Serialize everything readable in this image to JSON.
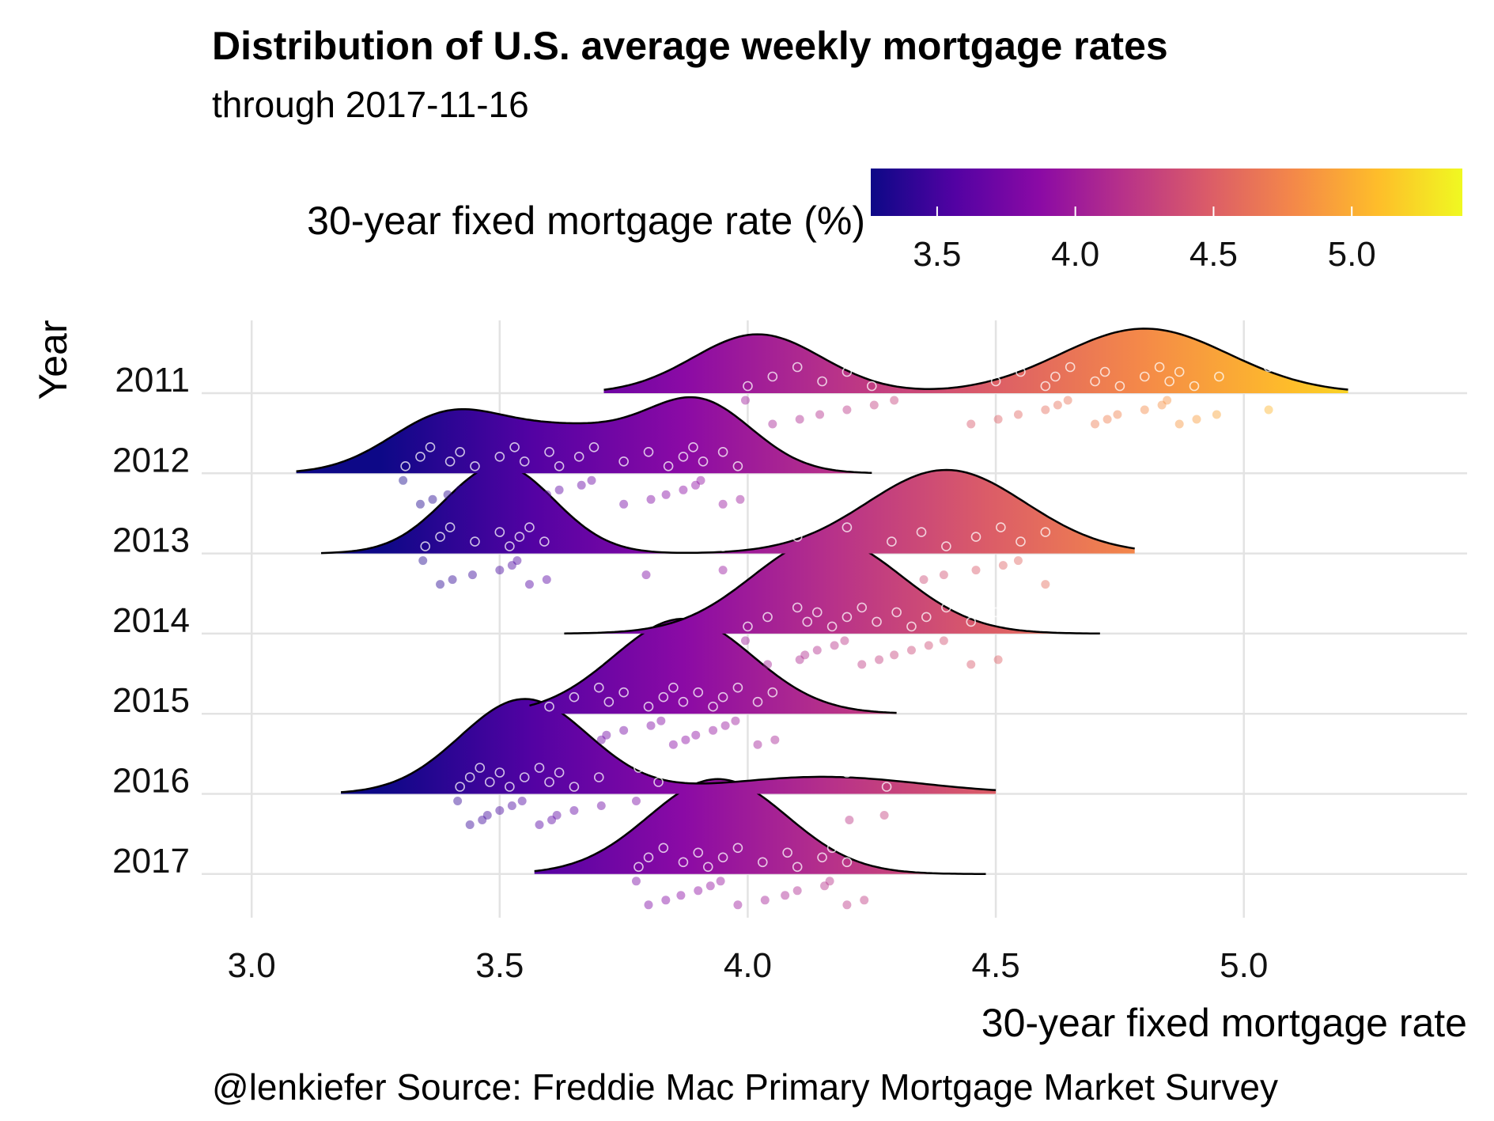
{
  "chart_data": {
    "type": "ridgeline",
    "title": "Distribution of U.S. average weekly mortgage rates",
    "subtitle": "through  2017-11-16",
    "xlabel": "30-year fixed mortgage rate",
    "ylabel": "Year",
    "caption": "@lenkiefer Source: Freddie Mac Primary Mortgage Market Survey",
    "xlim": [
      2.92,
      5.45
    ],
    "x_ticks": [
      "3.0",
      "3.5",
      "4.0",
      "4.5",
      "5.0"
    ],
    "x_tick_values": [
      3.0,
      3.5,
      4.0,
      4.5,
      5.0
    ],
    "legend": {
      "title": "30-year fixed mortgage rate (%)",
      "placement": "top-right",
      "range": [
        3.26,
        5.4
      ],
      "ticks": [
        "3.5",
        "4.0",
        "4.5",
        "5.0"
      ],
      "tick_values": [
        3.5,
        4.0,
        4.5,
        5.0
      ],
      "colormap": "plasma",
      "colors": [
        "#0d0887",
        "#5302a3",
        "#8b0aa5",
        "#b83289",
        "#db5c68",
        "#f48849",
        "#febd2a",
        "#f0f921"
      ]
    },
    "grid": true,
    "series": [
      {
        "name": "2011",
        "range": [
          3.71,
          5.21
        ],
        "peaks": [
          {
            "center": 4.02,
            "sd": 0.13,
            "weight": 0.62
          },
          {
            "center": 4.8,
            "sd": 0.17,
            "weight": 0.68
          }
        ],
        "points": [
          4.0,
          4.05,
          4.1,
          4.15,
          4.2,
          4.25,
          4.3,
          4.45,
          4.5,
          4.55,
          4.6,
          4.62,
          4.65,
          4.7,
          4.72,
          4.75,
          4.8,
          4.83,
          4.85,
          4.87,
          4.9,
          4.95,
          5.05
        ]
      },
      {
        "name": "2012",
        "range": [
          3.09,
          4.25
        ],
        "peaks": [
          {
            "center": 3.4,
            "sd": 0.12,
            "weight": 0.62
          },
          {
            "center": 3.65,
            "sd": 0.12,
            "weight": 0.4
          },
          {
            "center": 3.9,
            "sd": 0.11,
            "weight": 0.75
          }
        ],
        "points": [
          3.31,
          3.34,
          3.36,
          3.4,
          3.42,
          3.45,
          3.5,
          3.53,
          3.55,
          3.6,
          3.62,
          3.66,
          3.69,
          3.75,
          3.8,
          3.84,
          3.87,
          3.89,
          3.91,
          3.95,
          3.98
        ]
      },
      {
        "name": "2013",
        "range": [
          3.14,
          4.78
        ],
        "peaks": [
          {
            "center": 3.5,
            "sd": 0.11,
            "weight": 0.93
          },
          {
            "center": 4.4,
            "sd": 0.16,
            "weight": 0.88
          }
        ],
        "points": [
          3.35,
          3.38,
          3.4,
          3.45,
          3.5,
          3.52,
          3.54,
          3.56,
          3.59,
          3.8,
          3.95,
          4.1,
          4.2,
          4.29,
          4.35,
          4.4,
          4.46,
          4.51,
          4.55,
          4.6
        ]
      },
      {
        "name": "2014",
        "range": [
          3.63,
          4.71
        ],
        "peaks": [
          {
            "center": 4.16,
            "sd": 0.15,
            "weight": 1.0
          }
        ],
        "points": [
          4.0,
          4.04,
          4.1,
          4.12,
          4.14,
          4.17,
          4.2,
          4.23,
          4.26,
          4.3,
          4.33,
          4.36,
          4.4,
          4.45,
          4.5
        ]
      },
      {
        "name": "2015",
        "range": [
          3.56,
          4.3
        ],
        "peaks": [
          {
            "center": 3.87,
            "sd": 0.14,
            "weight": 1.0
          }
        ],
        "points": [
          3.6,
          3.65,
          3.7,
          3.72,
          3.75,
          3.8,
          3.83,
          3.85,
          3.87,
          3.9,
          3.93,
          3.95,
          3.98,
          4.02,
          4.05
        ]
      },
      {
        "name": "2016",
        "range": [
          3.18,
          4.5
        ],
        "peaks": [
          {
            "center": 3.55,
            "sd": 0.13,
            "weight": 1.0
          },
          {
            "center": 4.15,
            "sd": 0.2,
            "weight": 0.18
          }
        ],
        "points": [
          3.42,
          3.44,
          3.46,
          3.48,
          3.5,
          3.52,
          3.55,
          3.58,
          3.6,
          3.62,
          3.65,
          3.7,
          3.78,
          3.82,
          4.2,
          4.28
        ]
      },
      {
        "name": "2017",
        "range": [
          3.57,
          4.48
        ],
        "peaks": [
          {
            "center": 3.94,
            "sd": 0.14,
            "weight": 1.0
          }
        ],
        "points": [
          3.78,
          3.8,
          3.83,
          3.87,
          3.9,
          3.92,
          3.95,
          3.98,
          4.03,
          4.08,
          4.1,
          4.15,
          4.17,
          4.2,
          4.23
        ]
      }
    ]
  }
}
